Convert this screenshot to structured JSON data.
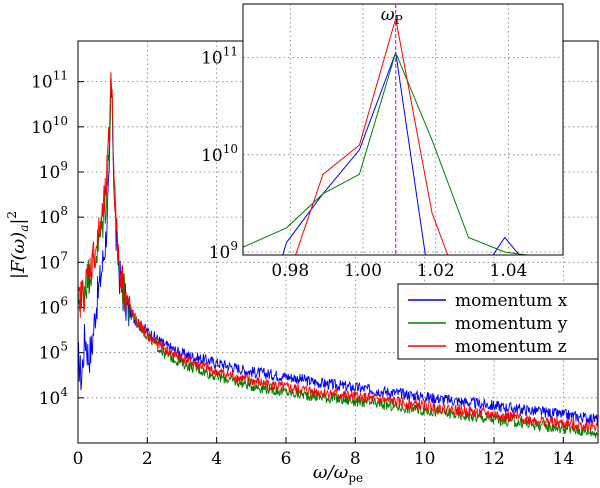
{
  "chart_data": [
    {
      "type": "line",
      "xlabel": "ω/ω_pe",
      "ylabel": "|F(ω)_a|^2",
      "xlim": [
        0,
        15
      ],
      "ylim_log10": [
        3.0,
        11.9
      ],
      "yscale": "log",
      "grid": true,
      "legend_position": "right",
      "x_ticks": [
        "0",
        "2",
        "4",
        "6",
        "8",
        "10",
        "12",
        "14"
      ],
      "y_ticks": [
        {
          "base": "10",
          "exp": "4",
          "value": 4
        },
        {
          "base": "10",
          "exp": "5",
          "value": 5
        },
        {
          "base": "10",
          "exp": "6",
          "value": 6
        },
        {
          "base": "10",
          "exp": "7",
          "value": 7
        },
        {
          "base": "10",
          "exp": "8",
          "value": 8
        },
        {
          "base": "10",
          "exp": "9",
          "value": 9
        },
        {
          "base": "10",
          "exp": "10",
          "value": 10
        },
        {
          "base": "10",
          "exp": "11",
          "value": 11
        }
      ],
      "series": [
        {
          "name": "momentum x",
          "color": "#0000ff",
          "x": [
            0.0,
            0.1,
            0.2,
            0.3,
            0.4,
            0.5,
            0.6,
            0.7,
            0.8,
            0.9,
            0.95,
            1.0,
            1.05,
            1.1,
            1.2,
            1.3,
            1.4,
            1.5,
            1.7,
            2.0,
            2.5,
            3.0,
            4.0,
            5.0,
            6.0,
            7.0,
            8.0,
            9.0,
            10.0,
            11.0,
            12.0,
            13.0,
            14.0,
            15.0
          ],
          "log10y": [
            5.0,
            4.5,
            5.5,
            5.0,
            5.2,
            6.0,
            6.5,
            7.0,
            7.6,
            8.8,
            11.1,
            10.0,
            8.6,
            7.6,
            6.8,
            6.4,
            6.1,
            5.9,
            5.7,
            5.5,
            5.2,
            5.0,
            4.8,
            4.6,
            4.5,
            4.35,
            4.25,
            4.15,
            4.05,
            3.95,
            3.85,
            3.75,
            3.65,
            3.55
          ]
        },
        {
          "name": "momentum y",
          "color": "#007f00",
          "x": [
            0.0,
            0.1,
            0.2,
            0.3,
            0.4,
            0.5,
            0.6,
            0.7,
            0.8,
            0.9,
            0.95,
            1.0,
            1.05,
            1.1,
            1.2,
            1.3,
            1.4,
            1.5,
            1.7,
            2.0,
            2.5,
            3.0,
            4.0,
            5.0,
            6.0,
            7.0,
            8.0,
            9.0,
            10.0,
            11.0,
            12.0,
            13.0,
            14.0,
            15.0
          ],
          "log10y": [
            6.3,
            6.4,
            6.6,
            6.8,
            7.0,
            7.2,
            7.5,
            7.9,
            8.4,
            9.6,
            11.3,
            10.2,
            8.7,
            7.7,
            6.9,
            6.5,
            6.2,
            6.0,
            5.7,
            5.4,
            5.0,
            4.8,
            4.5,
            4.3,
            4.15,
            4.05,
            3.95,
            3.85,
            3.75,
            3.65,
            3.55,
            3.45,
            3.35,
            3.25
          ]
        },
        {
          "name": "momentum z",
          "color": "#ff0000",
          "x": [
            0.0,
            0.1,
            0.2,
            0.3,
            0.4,
            0.5,
            0.6,
            0.7,
            0.8,
            0.9,
            0.95,
            1.0,
            1.05,
            1.1,
            1.2,
            1.3,
            1.4,
            1.5,
            1.7,
            2.0,
            2.5,
            3.0,
            4.0,
            5.0,
            6.0,
            7.0,
            8.0,
            9.0,
            10.0,
            11.0,
            12.0,
            13.0,
            14.0,
            15.0
          ],
          "log10y": [
            6.2,
            6.3,
            6.5,
            6.8,
            7.1,
            7.4,
            7.7,
            8.1,
            8.6,
            9.9,
            11.4,
            10.3,
            8.8,
            7.8,
            7.0,
            6.6,
            6.3,
            6.0,
            5.7,
            5.4,
            5.1,
            4.9,
            4.6,
            4.4,
            4.25,
            4.15,
            4.05,
            3.95,
            3.85,
            3.75,
            3.65,
            3.55,
            3.45,
            3.4
          ]
        }
      ]
    },
    {
      "type": "line",
      "xlim": [
        0.967,
        1.055
      ],
      "ylim_log10": [
        8.97,
        11.55
      ],
      "yscale": "log",
      "grid": true,
      "annotation": {
        "label": "ω_P",
        "x": 1.009
      },
      "x_ticks": [
        {
          "label": "0.98",
          "value": 0.98
        },
        {
          "label": "1.00",
          "value": 1.0
        },
        {
          "label": "1.02",
          "value": 1.02
        },
        {
          "label": "1.04",
          "value": 1.04
        }
      ],
      "y_ticks": [
        {
          "base": "10",
          "exp": "9",
          "value": 9
        },
        {
          "base": "10",
          "exp": "10",
          "value": 10
        },
        {
          "base": "10",
          "exp": "11",
          "value": 11
        }
      ],
      "series": [
        {
          "color": "#0000ff",
          "x": [
            0.974,
            0.979,
            0.989,
            0.999,
            1.009,
            1.019,
            1.029,
            1.039,
            1.049
          ],
          "log10y": [
            8.5,
            9.1,
            9.6,
            10.05,
            11.05,
            8.5,
            8.6,
            9.15,
            8.7
          ]
        },
        {
          "color": "#007f00",
          "x": [
            0.967,
            0.979,
            0.989,
            0.999,
            1.009,
            1.019,
            1.029,
            1.039,
            1.049
          ],
          "log10y": [
            9.05,
            9.25,
            9.6,
            9.8,
            11.05,
            10.15,
            9.15,
            9.0,
            8.95
          ]
        },
        {
          "color": "#ff0000",
          "x": [
            0.974,
            0.979,
            0.989,
            0.999,
            1.009,
            1.019,
            1.029,
            1.039,
            1.049
          ],
          "log10y": [
            8.2,
            8.7,
            9.8,
            10.1,
            11.4,
            9.4,
            8.4,
            8.2,
            8.2
          ]
        }
      ]
    }
  ]
}
